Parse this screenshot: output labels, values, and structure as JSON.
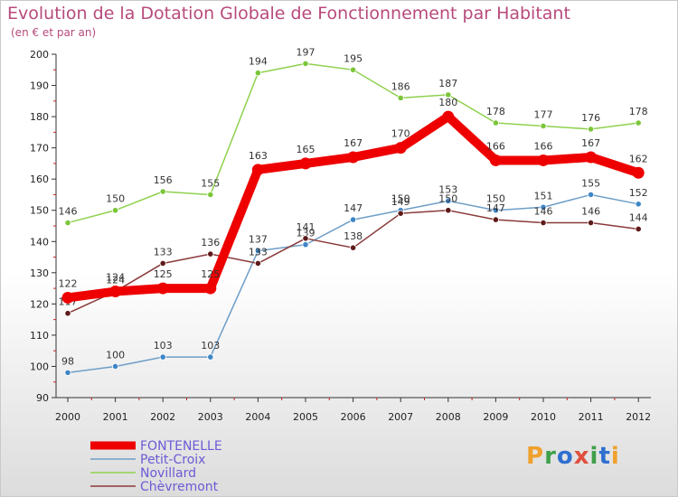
{
  "header": {
    "title": "Evolution de la Dotation Globale de Fonctionnement par Habitant",
    "subtitle": "(en € et par an)"
  },
  "logo": {
    "text": "Proxiti"
  },
  "colors": {
    "title": "#b84a7c",
    "axis": "#333333",
    "minor_tick": "#cc2222",
    "legend_text": "#6b5bd6"
  },
  "chart_data": {
    "type": "line",
    "title": "Evolution de la Dotation Globale de Fonctionnement par Habitant",
    "subtitle": "(en € et par an)",
    "xlabel": "",
    "ylabel": "",
    "ylim": [
      90,
      200
    ],
    "yticks": [
      90,
      100,
      110,
      120,
      130,
      140,
      150,
      160,
      170,
      180,
      190,
      200
    ],
    "categories": [
      "2000",
      "2001",
      "2002",
      "2003",
      "2004",
      "2005",
      "2006",
      "2007",
      "2008",
      "2009",
      "2010",
      "2011",
      "2012"
    ],
    "legend_position": "bottom-left",
    "series": [
      {
        "name": "Novillard",
        "color": "#8fd14f",
        "marker_color": "#7cc63a",
        "values": [
          146,
          150,
          156,
          155,
          194,
          197,
          195,
          186,
          187,
          178,
          177,
          176,
          178
        ],
        "labels": [
          "146",
          "150",
          "156",
          "155",
          "194",
          "197",
          "195",
          "186",
          "187",
          "178",
          "177",
          "176",
          "178"
        ],
        "bold": false
      },
      {
        "name": "Petit-Croix",
        "color": "#6e9ec8",
        "marker_color": "#3f86c6",
        "values": [
          98,
          100,
          103,
          103,
          137,
          139,
          147,
          150,
          153,
          150,
          151,
          155,
          152
        ],
        "labels": [
          "98",
          "100",
          "103",
          "103",
          "137",
          "139",
          "147",
          "150",
          "153",
          "150",
          "151",
          "155",
          "152"
        ],
        "bold": false
      },
      {
        "name": "Chèvremont",
        "color": "#8b3a3a",
        "marker_color": "#5e1a1a",
        "values": [
          117,
          124,
          133,
          136,
          133,
          141,
          138,
          149,
          150,
          147,
          146,
          146,
          144
        ],
        "labels": [
          "117",
          "124",
          "133",
          "136",
          "133",
          "141",
          "138",
          "149",
          "150",
          "147",
          "146",
          "146",
          "144"
        ],
        "bold": false
      },
      {
        "name": "FONTENELLE",
        "color": "#ee0000",
        "marker_color": "#ee0000",
        "values": [
          122,
          124,
          125,
          125,
          163,
          165,
          167,
          170,
          180,
          166,
          166,
          167,
          162
        ],
        "labels": [
          "122",
          "124",
          "125",
          "125",
          "163",
          "165",
          "167",
          "170",
          "180",
          "166",
          "166",
          "167",
          "162"
        ],
        "bold": true
      }
    ],
    "legend_order": [
      "FONTENELLE",
      "Petit-Croix",
      "Novillard",
      "Chèvremont"
    ]
  }
}
